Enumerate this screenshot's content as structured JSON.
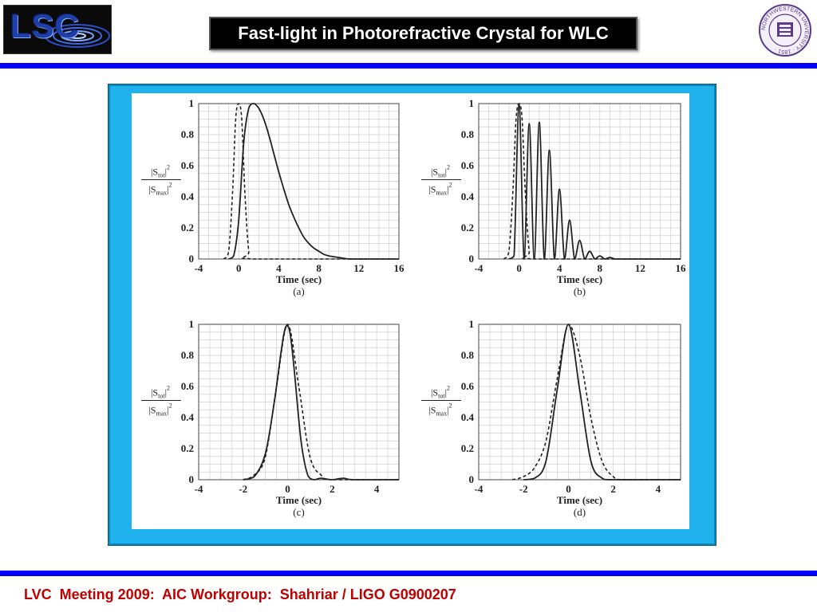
{
  "header": {
    "logo_text": "LSC",
    "title": "Fast-light in Photorefractive Crystal for WLC",
    "seal_text": "NORTHWESTERN UNIVERSITY · 1851 ·"
  },
  "footer": {
    "text": "LVC  Meeting 2009:  AIC Workgroup:  Shahriar / LIGO G0900207"
  },
  "colors": {
    "rule": "#0000ff",
    "frame": "#1fb2ec",
    "footer_text": "#c00000",
    "seal": "#5b3a8c"
  },
  "chart_data": [
    {
      "type": "line",
      "panel": "(a)",
      "xlabel": "Time (sec)",
      "ylabel": "|S_tot|^2 / |S_max|^2",
      "xlim": [
        -4,
        16
      ],
      "ylim": [
        0,
        1
      ],
      "xticks": [
        -4,
        0,
        4,
        8,
        12,
        16
      ],
      "yticks": [
        0,
        0.2,
        0.4,
        0.6,
        0.8,
        1
      ],
      "grid": true,
      "series": [
        {
          "style": "solid",
          "x": [
            -1,
            -0.5,
            0,
            0.5,
            1,
            1.5,
            2,
            2.5,
            3,
            3.5,
            4,
            4.5,
            5,
            5.5,
            6,
            6.5,
            7,
            7.5,
            8,
            8.5,
            9,
            10,
            11,
            12,
            16
          ],
          "y": [
            0,
            0.02,
            0.25,
            0.75,
            0.97,
            1.0,
            0.97,
            0.9,
            0.8,
            0.68,
            0.56,
            0.45,
            0.35,
            0.27,
            0.2,
            0.14,
            0.1,
            0.07,
            0.05,
            0.03,
            0.02,
            0.01,
            0,
            0,
            0
          ]
        },
        {
          "style": "dashed",
          "x": [
            -1.5,
            -1,
            -0.6,
            -0.3,
            0,
            0.3,
            0.6,
            1,
            1.5,
            16
          ],
          "y": [
            0,
            0.05,
            0.45,
            0.9,
            1.0,
            0.9,
            0.45,
            0.05,
            0,
            0
          ]
        }
      ]
    },
    {
      "type": "line",
      "panel": "(b)",
      "xlabel": "Time (sec)",
      "ylabel": "|S_tot|^2 / |S_max|^2",
      "xlim": [
        -4,
        16
      ],
      "ylim": [
        0,
        1
      ],
      "xticks": [
        -4,
        0,
        4,
        8,
        12,
        16
      ],
      "yticks": [
        0,
        0.2,
        0.4,
        0.6,
        0.8,
        1
      ],
      "grid": true,
      "series": [
        {
          "style": "solid",
          "x": [
            -1,
            -0.5,
            0,
            0.5,
            1,
            1.5,
            2,
            2.5,
            3,
            3.5,
            4,
            4.5,
            5,
            5.5,
            6,
            6.5,
            7,
            7.5,
            8,
            8.5,
            9,
            9.5,
            10,
            16
          ],
          "y": [
            0,
            0.02,
            1.0,
            0,
            0.87,
            0,
            0.88,
            0,
            0.7,
            0,
            0.45,
            0,
            0.25,
            0,
            0.12,
            0,
            0.05,
            0,
            0.02,
            0,
            0.01,
            0,
            0,
            0
          ]
        },
        {
          "style": "dashed",
          "x": [
            -1.5,
            -1,
            -0.6,
            -0.3,
            0,
            0.3,
            0.6,
            1,
            1.5,
            16
          ],
          "y": [
            0,
            0.05,
            0.45,
            0.9,
            1.0,
            0.9,
            0.45,
            0.05,
            0,
            0
          ]
        }
      ]
    },
    {
      "type": "line",
      "panel": "(c)",
      "xlabel": "Time (sec)",
      "ylabel": "|S_tot|^2 / |S_max|^2",
      "xlim": [
        -4,
        5
      ],
      "ylim": [
        0,
        1
      ],
      "xticks": [
        -4,
        -2,
        0,
        2,
        4
      ],
      "yticks": [
        0,
        0.2,
        0.4,
        0.6,
        0.8,
        1
      ],
      "grid": true,
      "series": [
        {
          "style": "solid",
          "x": [
            -2,
            -1.5,
            -1,
            -0.6,
            -0.3,
            -0.1,
            0.1,
            0.3,
            0.6,
            0.9,
            1.2,
            1.5,
            2,
            2.5,
            3,
            5
          ],
          "y": [
            0,
            0.02,
            0.17,
            0.5,
            0.82,
            0.98,
            0.95,
            0.7,
            0.25,
            0.03,
            0,
            0.01,
            0,
            0.01,
            0,
            0
          ]
        },
        {
          "style": "dashed",
          "x": [
            -2,
            -1.5,
            -1,
            -0.5,
            0,
            0.5,
            1,
            1.5,
            2,
            5
          ],
          "y": [
            0,
            0.03,
            0.15,
            0.6,
            1.0,
            0.6,
            0.15,
            0.03,
            0,
            0
          ]
        }
      ]
    },
    {
      "type": "line",
      "panel": "(d)",
      "xlabel": "Time (sec)",
      "ylabel": "|S_tot|^2 / |S_max|^2",
      "xlim": [
        -4,
        5
      ],
      "ylim": [
        0,
        1
      ],
      "xticks": [
        -4,
        -2,
        0,
        2,
        4
      ],
      "yticks": [
        0,
        0.2,
        0.4,
        0.6,
        0.8,
        1
      ],
      "grid": true,
      "series": [
        {
          "style": "solid",
          "x": [
            -2,
            -1.5,
            -1,
            -0.5,
            0,
            0.5,
            1,
            1.5,
            2,
            5
          ],
          "y": [
            0,
            0.01,
            0.12,
            0.58,
            1.0,
            0.58,
            0.12,
            0.01,
            0,
            0
          ]
        },
        {
          "style": "dashed",
          "x": [
            -2.5,
            -2,
            -1.5,
            -1,
            -0.5,
            0,
            0.5,
            1,
            1.5,
            2,
            2.5,
            5
          ],
          "y": [
            0,
            0.02,
            0.08,
            0.25,
            0.65,
            1.0,
            0.8,
            0.4,
            0.12,
            0.02,
            0,
            0
          ]
        }
      ]
    }
  ]
}
